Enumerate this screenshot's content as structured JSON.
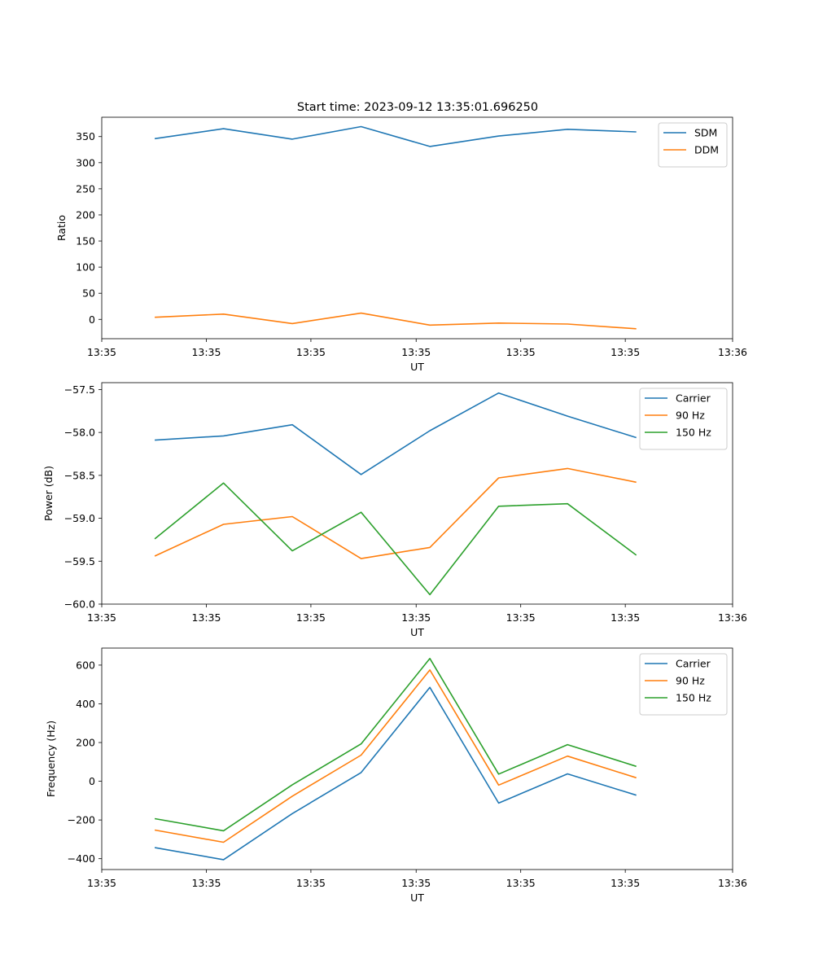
{
  "figure": {
    "title": "Start time: 2023-09-12 13:35:01.696250"
  },
  "chart_data": [
    {
      "type": "line",
      "title": "Start time: 2023-09-12 13:35:01.696250",
      "xlabel": "UT",
      "ylabel": "Ratio",
      "x": [
        0,
        1,
        2,
        3,
        4,
        5,
        6,
        7
      ],
      "xlim": [
        -0.77,
        8.4
      ],
      "x_ticks": [
        -0.77,
        0.75,
        2.27,
        3.8,
        5.32,
        6.84,
        8.4
      ],
      "x_tick_labels": [
        "13:35",
        "13:35",
        "13:35",
        "13:35",
        "13:35",
        "13:35",
        "13:36"
      ],
      "ylim": [
        -37,
        387
      ],
      "y_ticks": [
        0,
        50,
        100,
        150,
        200,
        250,
        300,
        350
      ],
      "y_tick_labels": [
        "0",
        "50",
        "100",
        "150",
        "200",
        "250",
        "300",
        "350"
      ],
      "grid": false,
      "legend_position": "top-right",
      "series": [
        {
          "name": "SDM",
          "color": "#1f77b4",
          "values": [
            346,
            365,
            345,
            369,
            331,
            351,
            364,
            359
          ]
        },
        {
          "name": "DDM",
          "color": "#ff7f0e",
          "values": [
            4,
            10,
            -8,
            12,
            -11,
            -7,
            -9,
            -18
          ]
        }
      ]
    },
    {
      "type": "line",
      "title": "",
      "xlabel": "UT",
      "ylabel": "Power (dB)",
      "x": [
        0,
        1,
        2,
        3,
        4,
        5,
        6,
        7
      ],
      "xlim": [
        -0.77,
        8.4
      ],
      "x_ticks": [
        -0.77,
        0.75,
        2.27,
        3.8,
        5.32,
        6.84,
        8.4
      ],
      "x_tick_labels": [
        "13:35",
        "13:35",
        "13:35",
        "13:35",
        "13:35",
        "13:35",
        "13:36"
      ],
      "ylim": [
        -60.0,
        -57.42
      ],
      "y_ticks": [
        -60.0,
        -59.5,
        -59.0,
        -58.5,
        -58.0,
        -57.5
      ],
      "y_tick_labels": [
        "−60.0",
        "−59.5",
        "−59.0",
        "−58.5",
        "−58.0",
        "−57.5"
      ],
      "grid": false,
      "legend_position": "top-right",
      "series": [
        {
          "name": "Carrier",
          "color": "#1f77b4",
          "values": [
            -58.09,
            -58.04,
            -57.91,
            -58.49,
            -57.98,
            -57.54,
            -57.81,
            -58.06
          ]
        },
        {
          "name": "90 Hz",
          "color": "#ff7f0e",
          "values": [
            -59.44,
            -59.07,
            -58.98,
            -59.47,
            -59.34,
            -58.53,
            -58.42,
            -58.58
          ]
        },
        {
          "name": "150 Hz",
          "color": "#2ca02c",
          "values": [
            -59.24,
            -58.59,
            -59.38,
            -58.93,
            -59.89,
            -58.86,
            -58.83,
            -59.43
          ]
        }
      ]
    },
    {
      "type": "line",
      "title": "",
      "xlabel": "UT",
      "ylabel": "Frequency (Hz)",
      "x": [
        0,
        1,
        2,
        3,
        4,
        5,
        6,
        7
      ],
      "xlim": [
        -0.77,
        8.4
      ],
      "x_ticks": [
        -0.77,
        0.75,
        2.27,
        3.8,
        5.32,
        6.84,
        8.4
      ],
      "x_tick_labels": [
        "13:35",
        "13:35",
        "13:35",
        "13:35",
        "13:35",
        "13:35",
        "13:36"
      ],
      "ylim": [
        -456,
        688
      ],
      "y_ticks": [
        -400,
        -200,
        0,
        200,
        400,
        600
      ],
      "y_tick_labels": [
        "−400",
        "−200",
        "0",
        "200",
        "400",
        "600"
      ],
      "grid": false,
      "legend_position": "top-right",
      "series": [
        {
          "name": "Carrier",
          "color": "#1f77b4",
          "values": [
            -343,
            -405,
            -167,
            45,
            485,
            -113,
            38,
            -72
          ]
        },
        {
          "name": "90 Hz",
          "color": "#ff7f0e",
          "values": [
            -252,
            -315,
            -77,
            135,
            575,
            -20,
            130,
            18
          ]
        },
        {
          "name": "150 Hz",
          "color": "#2ca02c",
          "values": [
            -193,
            -256,
            -18,
            193,
            634,
            37,
            189,
            77
          ]
        }
      ]
    }
  ]
}
